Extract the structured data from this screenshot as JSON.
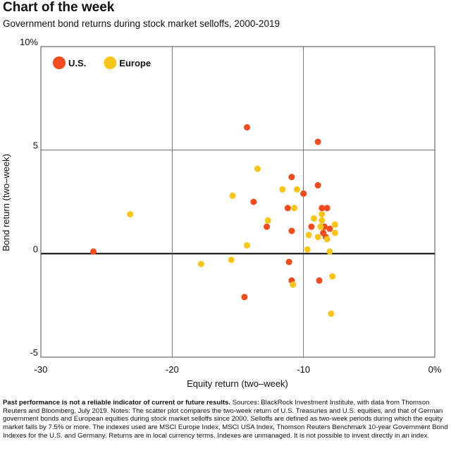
{
  "chart_data": {
    "type": "scatter",
    "title": "Chart of the week",
    "subtitle": "Government bond returns during stock market selloffs, 2000-2019",
    "x_label": "Equity return (two–week)",
    "y_label": "Bond return (two–week)",
    "xlim": [
      -30,
      0
    ],
    "ylim": [
      -5,
      10
    ],
    "xticks": [
      -30,
      -20,
      -10,
      {
        "value": 0,
        "label": "0%"
      }
    ],
    "yticks": [
      -5,
      0,
      5,
      {
        "value": 10,
        "label": "10%"
      }
    ],
    "grid": true,
    "legend": "upper left",
    "series": [
      {
        "name": "U.S.",
        "color": "#f24b1d",
        "x": [
          -26.0,
          -14.3,
          -8.9,
          -10.9,
          -8.9,
          -10.0,
          -13.8,
          -11.2,
          -8.6,
          -8.2,
          -12.8,
          -10.9,
          -9.4,
          -8.4,
          -8.0,
          -8.5,
          -8.3,
          -11.1,
          -10.9,
          -8.8,
          -14.5
        ],
        "values": [
          0.1,
          6.1,
          5.4,
          3.7,
          3.3,
          2.9,
          2.5,
          2.2,
          2.2,
          2.2,
          1.3,
          1.1,
          1.3,
          1.3,
          1.2,
          1.0,
          0.8,
          -0.4,
          -1.3,
          -1.3,
          -2.1
        ]
      },
      {
        "name": "Europe",
        "color": "#f7c51b",
        "x": [
          -23.2,
          -13.5,
          -15.4,
          -11.6,
          -10.5,
          -10.7,
          -12.7,
          -8.6,
          -9.2,
          -8.6,
          -7.6,
          -8.7,
          -9.6,
          -8.9,
          -7.6,
          -8.2,
          -14.3,
          -9.7,
          -8.0,
          -15.5,
          -17.8,
          -7.8,
          -10.8,
          -7.9
        ],
        "values": [
          1.9,
          4.1,
          2.8,
          3.1,
          3.1,
          2.2,
          1.6,
          1.9,
          1.7,
          1.6,
          1.4,
          1.3,
          0.9,
          0.8,
          1.0,
          0.7,
          0.4,
          0.2,
          0.1,
          -0.3,
          -0.5,
          -1.1,
          -1.5,
          -2.9
        ]
      }
    ],
    "footnote": {
      "bold": "Past performance is not a reliable indicator of current or future results.",
      "text": "Sources: BlackRock Investment Institute, with data from Thomson Reuters and Bloomberg, July 2019. Notes: The scatter plot compares the two-week return of U.S. Treasuries and U.S. equities, and that of German government bonds and European equities during stock market selloffs since 2000. Selloffs are defined as two-week periods during which the equity market falls by 7.5% or more. The indexes used are MSCI Europe Index, MSCI USA Index, Thomson Reuters Benchmark 10-year Government Bond Indexes for the U.S. and Germany. Returns are in local currency terms. Indexes are unmanaged. It is not possible to invest directly in an index."
    }
  }
}
